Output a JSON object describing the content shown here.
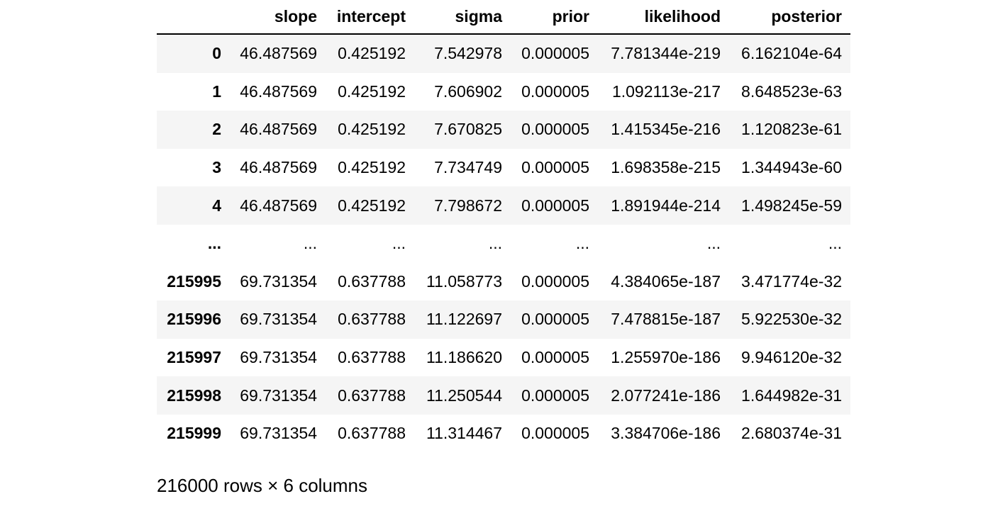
{
  "table": {
    "columns": [
      "slope",
      "intercept",
      "sigma",
      "prior",
      "likelihood",
      "posterior"
    ],
    "rows": [
      {
        "index": "0",
        "cells": [
          "46.487569",
          "0.425192",
          "7.542978",
          "0.000005",
          "7.781344e-219",
          "6.162104e-64"
        ]
      },
      {
        "index": "1",
        "cells": [
          "46.487569",
          "0.425192",
          "7.606902",
          "0.000005",
          "1.092113e-217",
          "8.648523e-63"
        ]
      },
      {
        "index": "2",
        "cells": [
          "46.487569",
          "0.425192",
          "7.670825",
          "0.000005",
          "1.415345e-216",
          "1.120823e-61"
        ]
      },
      {
        "index": "3",
        "cells": [
          "46.487569",
          "0.425192",
          "7.734749",
          "0.000005",
          "1.698358e-215",
          "1.344943e-60"
        ]
      },
      {
        "index": "4",
        "cells": [
          "46.487569",
          "0.425192",
          "7.798672",
          "0.000005",
          "1.891944e-214",
          "1.498245e-59"
        ]
      },
      {
        "index": "...",
        "cells": [
          "...",
          "...",
          "...",
          "...",
          "...",
          "..."
        ]
      },
      {
        "index": "215995",
        "cells": [
          "69.731354",
          "0.637788",
          "11.058773",
          "0.000005",
          "4.384065e-187",
          "3.471774e-32"
        ]
      },
      {
        "index": "215996",
        "cells": [
          "69.731354",
          "0.637788",
          "11.122697",
          "0.000005",
          "7.478815e-187",
          "5.922530e-32"
        ]
      },
      {
        "index": "215997",
        "cells": [
          "69.731354",
          "0.637788",
          "11.186620",
          "0.000005",
          "1.255970e-186",
          "9.946120e-32"
        ]
      },
      {
        "index": "215998",
        "cells": [
          "69.731354",
          "0.637788",
          "11.250544",
          "0.000005",
          "2.077241e-186",
          "1.644982e-31"
        ]
      },
      {
        "index": "215999",
        "cells": [
          "69.731354",
          "0.637788",
          "11.314467",
          "0.000005",
          "3.384706e-186",
          "2.680374e-31"
        ]
      }
    ]
  },
  "footer": {
    "summary": "216000 rows × 6 columns"
  },
  "colors": {
    "stripe": "#f5f5f5",
    "header_rule": "#000000",
    "text": "#000000",
    "background": "#ffffff"
  }
}
